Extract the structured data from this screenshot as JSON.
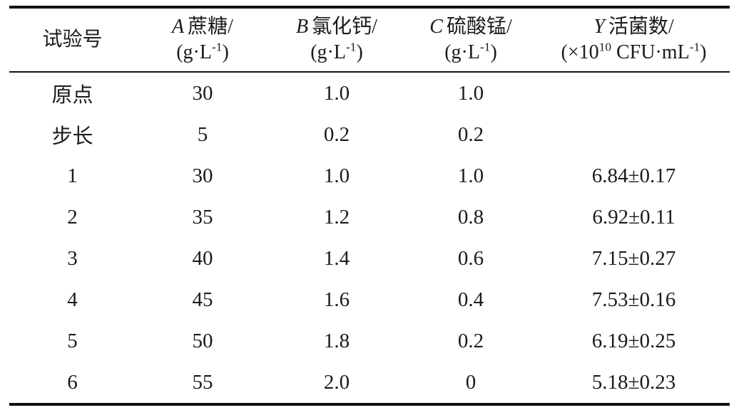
{
  "page": {
    "background": "#ffffff",
    "text_color": "#1b1b1b",
    "rule_color": "#111111"
  },
  "table": {
    "header": {
      "run": "试验号",
      "a": {
        "letter": "A",
        "name": "蔗糖/",
        "unit_pre": "(g·L",
        "unit_sup": "-1",
        "unit_post": ")"
      },
      "b": {
        "letter": "B",
        "name": "氯化钙/",
        "unit_pre": "(g·L",
        "unit_sup": "-1",
        "unit_post": ")"
      },
      "c": {
        "letter": "C",
        "name": "硫酸锰/",
        "unit_pre": "(g·L",
        "unit_sup": "-1",
        "unit_post": ")"
      },
      "y": {
        "letter": "Y",
        "name": "活菌数/",
        "unit_p1": "(×10",
        "unit_sup1": "10",
        "unit_p2": " CFU·mL",
        "unit_sup2": "-1",
        "unit_p3": ")"
      }
    },
    "rows": [
      {
        "cells": [
          "原点",
          "30",
          "1.0",
          "1.0",
          ""
        ]
      },
      {
        "cells": [
          "步长",
          "5",
          "0.2",
          "0.2",
          ""
        ]
      },
      {
        "cells": [
          "1",
          "30",
          "1.0",
          "1.0",
          "6.84±0.17"
        ]
      },
      {
        "cells": [
          "2",
          "35",
          "1.2",
          "0.8",
          "6.92±0.11"
        ]
      },
      {
        "cells": [
          "3",
          "40",
          "1.4",
          "0.6",
          "7.15±0.27"
        ]
      },
      {
        "cells": [
          "4",
          "45",
          "1.6",
          "0.4",
          "7.53±0.16"
        ]
      },
      {
        "cells": [
          "5",
          "50",
          "1.8",
          "0.2",
          "6.19±0.25"
        ]
      },
      {
        "cells": [
          "6",
          "55",
          "2.0",
          "0",
          "5.18±0.23"
        ]
      }
    ]
  },
  "chart_data": {
    "type": "table",
    "columns": [
      "试验号",
      "A 蔗糖/(g·L-1)",
      "B 氯化钙/(g·L-1)",
      "C 硫酸锰/(g·L-1)",
      "Y 活菌数/(×10^10 CFU·mL-1)"
    ],
    "rows": [
      [
        "原点",
        30,
        1.0,
        1.0,
        null
      ],
      [
        "步长",
        5,
        0.2,
        0.2,
        null
      ],
      [
        1,
        30,
        1.0,
        1.0,
        "6.84±0.17"
      ],
      [
        2,
        35,
        1.2,
        0.8,
        "6.92±0.11"
      ],
      [
        3,
        40,
        1.4,
        0.6,
        "7.15±0.27"
      ],
      [
        4,
        45,
        1.6,
        0.4,
        "7.53±0.16"
      ],
      [
        5,
        50,
        1.8,
        0.2,
        "6.19±0.25"
      ],
      [
        6,
        55,
        2.0,
        0,
        "5.18±0.23"
      ]
    ]
  }
}
